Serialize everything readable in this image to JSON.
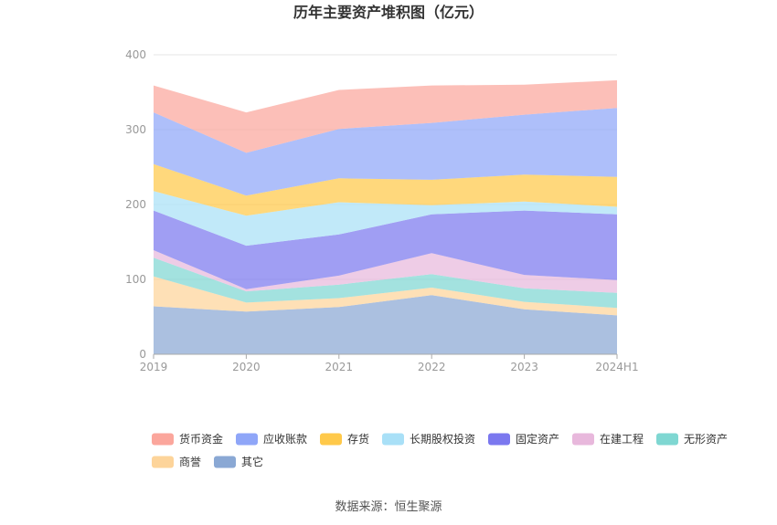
{
  "chart_data": {
    "type": "area",
    "stacked": true,
    "title": "历年主要资产堆积图（亿元）",
    "categories": [
      "2019",
      "2020",
      "2021",
      "2022",
      "2023",
      "2024H1"
    ],
    "ylim": [
      0,
      400
    ],
    "yticks": [
      "0",
      "100",
      "200",
      "300",
      "400"
    ],
    "grid": true,
    "legend_position": "bottom",
    "series": [
      {
        "name": "其它",
        "color": "#8aa8d4",
        "values": [
          64,
          57,
          63,
          79,
          60,
          52
        ]
      },
      {
        "name": "商誉",
        "color": "#fdd49a",
        "values": [
          40,
          12,
          12,
          10,
          10,
          10
        ]
      },
      {
        "name": "无形资产",
        "color": "#7fd7d2",
        "values": [
          25,
          15,
          18,
          18,
          18,
          20
        ]
      },
      {
        "name": "在建工程",
        "color": "#e8b8dc",
        "values": [
          10,
          3,
          12,
          28,
          18,
          17
        ]
      },
      {
        "name": "固定资产",
        "color": "#7b78ef",
        "values": [
          53,
          58,
          55,
          52,
          86,
          88
        ]
      },
      {
        "name": "长期股权投资",
        "color": "#a9e0f7",
        "values": [
          26,
          40,
          43,
          12,
          12,
          10
        ]
      },
      {
        "name": "存货",
        "color": "#ffc94a",
        "values": [
          36,
          27,
          32,
          34,
          36,
          40
        ]
      },
      {
        "name": "应收账款",
        "color": "#8fa6f8",
        "values": [
          69,
          57,
          66,
          76,
          80,
          92
        ]
      },
      {
        "name": "货币资金",
        "color": "#fba69c",
        "values": [
          36,
          54,
          52,
          50,
          40,
          37
        ]
      }
    ],
    "legend_order": [
      "货币资金",
      "应收账款",
      "存货",
      "长期股权投资",
      "固定资产",
      "在建工程",
      "无形资产",
      "商誉",
      "其它"
    ]
  },
  "source": "数据来源：恒生聚源"
}
